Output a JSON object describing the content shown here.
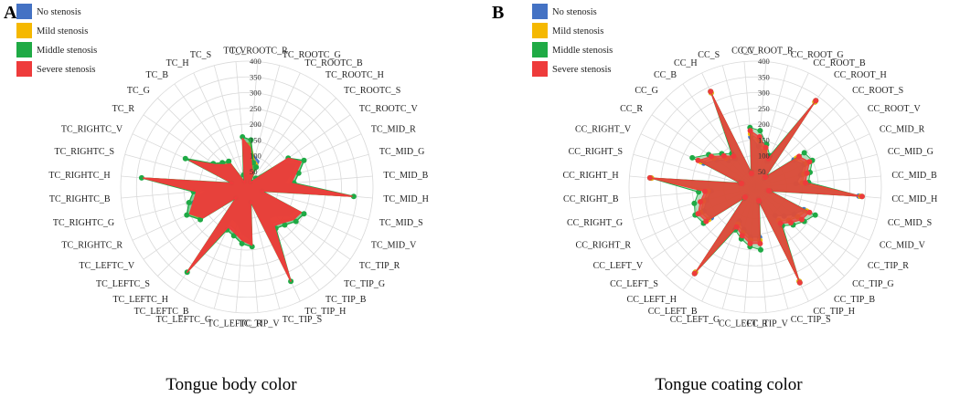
{
  "colors": {
    "no_stenosis": "#4472C4",
    "mild_stenosis": "#F5B800",
    "middle_stenosis": "#1FAA45",
    "severe_stenosis": "#EE3B3B",
    "grid": "#d9d9d9"
  },
  "legend": [
    {
      "label": "No stenosis",
      "color": "#4472C4"
    },
    {
      "label": "Mild stenosis",
      "color": "#F5B800"
    },
    {
      "label": "Middle stenosis",
      "color": "#1FAA45"
    },
    {
      "label": "Severe stenosis",
      "color": "#EE3B3B"
    }
  ],
  "chart_data": [
    {
      "panel": "A",
      "type": "radar",
      "title": "Tongue body color",
      "rmax": 400,
      "ticks": [
        50,
        100,
        150,
        200,
        250,
        300,
        350,
        400
      ],
      "categories": [
        "TC_ROOTC_R",
        "TC_ROOTC_G",
        "TC_ROOTC_B",
        "TC_ROOTC_H",
        "TC_ROOTC_S",
        "TC_ROOTC_V",
        "TC_MID_R",
        "TC_MID_G",
        "TC_MID_B",
        "TC_MID_H",
        "TC_MID_S",
        "TC_MID_V",
        "TC_TIP_R",
        "TC_TIP_G",
        "TC_TIP_B",
        "TC_TIP_H",
        "TC_TIP_S",
        "TC_TIP_V",
        "TC_LEFTC_R",
        "TC_LEFTC_G",
        "TC_LEFTC_B",
        "TC_LEFTC_H",
        "TC_LEFTC_S",
        "TC_LEFTC_V",
        "TC_RIGHTC_R",
        "TC_RIGHTC_G",
        "TC_RIGHTC_B",
        "TC_RIGHTC_H",
        "TC_RIGHTC_S",
        "TC_RIGHTC_V",
        "TC_R",
        "TC_G",
        "TC_B",
        "TC_H",
        "TC_S",
        "TC_V"
      ],
      "series": [
        {
          "name": "No stenosis",
          "values": [
            120,
            100,
            90,
            20,
            40,
            130,
            170,
            140,
            120,
            330,
            40,
            170,
            160,
            130,
            120,
            330,
            40,
            170,
            150,
            120,
            110,
            330,
            40,
            160,
            190,
            180,
            130,
            330,
            40,
            200,
            130,
            100,
            90,
            20,
            40,
            130
          ]
        },
        {
          "name": "Mild stenosis",
          "values": [
            140,
            90,
            80,
            20,
            40,
            150,
            185,
            150,
            135,
            335,
            45,
            185,
            175,
            150,
            140,
            330,
            45,
            180,
            170,
            140,
            130,
            330,
            45,
            175,
            200,
            170,
            150,
            330,
            45,
            190,
            130,
            110,
            100,
            20,
            40,
            140
          ]
        },
        {
          "name": "Middle stenosis",
          "values": [
            150,
            80,
            70,
            20,
            40,
            160,
            200,
            170,
            150,
            340,
            50,
            200,
            190,
            170,
            160,
            330,
            50,
            190,
            180,
            160,
            150,
            330,
            50,
            180,
            210,
            190,
            170,
            335,
            50,
            215,
            130,
            110,
            100,
            20,
            40,
            160
          ]
        },
        {
          "name": "Severe stenosis",
          "values": [
            125,
            60,
            50,
            15,
            30,
            160,
            190,
            160,
            140,
            335,
            45,
            190,
            180,
            160,
            150,
            330,
            45,
            185,
            170,
            150,
            140,
            330,
            45,
            170,
            200,
            175,
            160,
            330,
            45,
            200,
            125,
            100,
            90,
            15,
            30,
            155
          ]
        }
      ]
    },
    {
      "panel": "B",
      "type": "radar",
      "title": "Tongue coating color",
      "rmax": 400,
      "ticks": [
        50,
        100,
        150,
        200,
        250,
        300,
        350,
        400
      ],
      "categories": [
        "CC_ROOT_R",
        "CC_ROOT_G",
        "CC_ROOT_B",
        "CC_ROOT_H",
        "CC_ROOT_S",
        "CC_ROOT_V",
        "CC_MID_R",
        "CC_MID_G",
        "CC_MID_B",
        "CC_MID_H",
        "CC_MID_S",
        "CC_MID_V",
        "CC_TIP_R",
        "CC_TIP_G",
        "CC_TIP_B",
        "CC_TIP_H",
        "CC_TIP_S",
        "CC_TIP_V",
        "CC_LEFT_R",
        "CC_LEFT_G",
        "CC_LEFT_B",
        "CC_LEFT_H",
        "CC_LEFT_S",
        "CC_LEFT_V",
        "CC_RIGHT_R",
        "CC_RIGHT_G",
        "CC_RIGHT_B",
        "CC_RIGHT_H",
        "CC_RIGHT_S",
        "CC_RIGHT_V",
        "CC_R",
        "CC_G",
        "CC_B",
        "CC_H",
        "CC_S",
        "CC_V"
      ],
      "series": [
        {
          "name": "No stenosis",
          "values": [
            130,
            110,
            90,
            330,
            40,
            150,
            170,
            150,
            130,
            330,
            40,
            170,
            150,
            130,
            110,
            330,
            40,
            160,
            160,
            140,
            120,
            330,
            40,
            170,
            180,
            160,
            140,
            330,
            40,
            180,
            150,
            120,
            110,
            330,
            40,
            160
          ]
        },
        {
          "name": "Mild stenosis",
          "values": [
            150,
            120,
            100,
            330,
            45,
            160,
            180,
            160,
            150,
            335,
            45,
            180,
            165,
            150,
            130,
            330,
            45,
            170,
            170,
            150,
            130,
            330,
            45,
            180,
            190,
            170,
            150,
            330,
            45,
            190,
            160,
            130,
            120,
            330,
            45,
            170
          ]
        },
        {
          "name": "Middle stenosis",
          "values": [
            180,
            140,
            110,
            335,
            50,
            190,
            200,
            180,
            170,
            340,
            50,
            210,
            190,
            170,
            150,
            335,
            50,
            200,
            190,
            170,
            150,
            335,
            50,
            200,
            210,
            200,
            180,
            335,
            50,
            220,
            180,
            150,
            130,
            335,
            50,
            190
          ]
        },
        {
          "name": "Severe stenosis",
          "values": [
            160,
            130,
            100,
            335,
            45,
            170,
            190,
            170,
            160,
            340,
            45,
            190,
            180,
            160,
            140,
            335,
            45,
            180,
            180,
            160,
            140,
            335,
            45,
            190,
            200,
            180,
            160,
            335,
            45,
            200,
            170,
            140,
            120,
            335,
            45,
            180
          ]
        }
      ]
    }
  ],
  "panels": [
    {
      "letter": "A"
    },
    {
      "letter": "B"
    }
  ]
}
